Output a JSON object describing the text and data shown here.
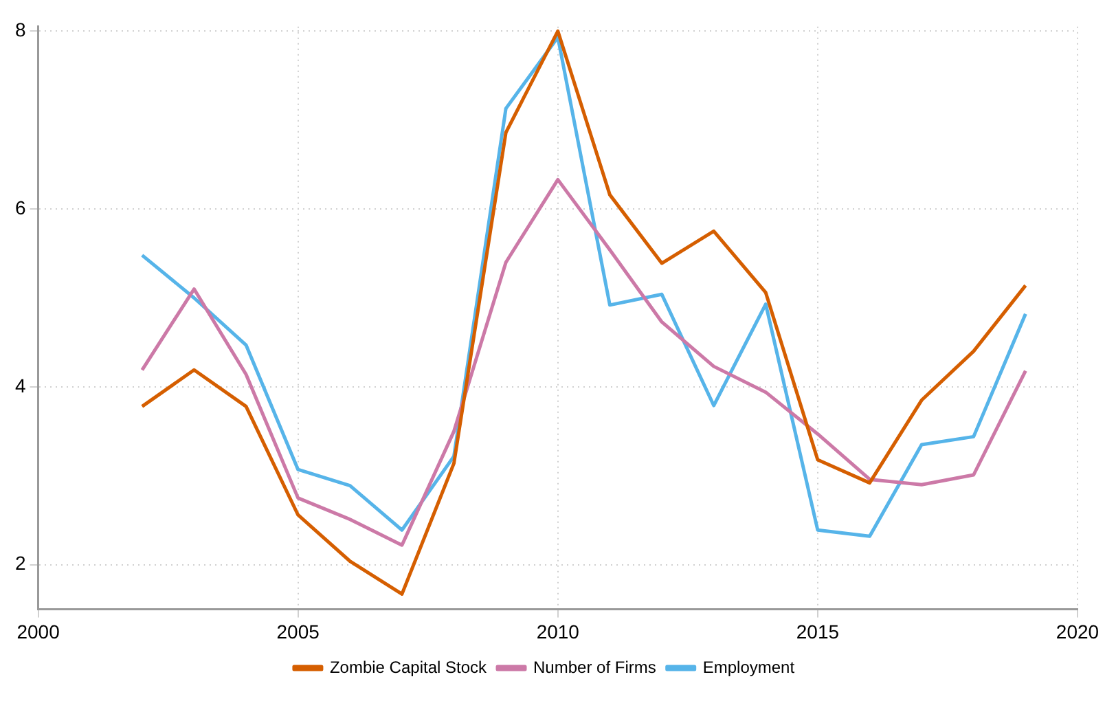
{
  "chart_data": {
    "type": "line",
    "x": [
      2002,
      2003,
      2004,
      2005,
      2006,
      2007,
      2008,
      2009,
      2010,
      2011,
      2012,
      2013,
      2014,
      2015,
      2016,
      2017,
      2018,
      2019
    ],
    "series": [
      {
        "name": "Zombie Capital Stock",
        "color": "#d55e00",
        "values": [
          3.78,
          4.19,
          3.78,
          2.56,
          2.04,
          1.67,
          3.14,
          6.86,
          8.0,
          6.16,
          5.39,
          5.75,
          5.06,
          3.18,
          2.92,
          3.85,
          4.4,
          5.14
        ]
      },
      {
        "name": "Number of Firms",
        "color": "#cc79a7",
        "values": [
          4.19,
          5.1,
          4.14,
          2.75,
          2.51,
          2.22,
          3.5,
          5.4,
          6.33,
          5.54,
          4.73,
          4.23,
          3.94,
          3.47,
          2.96,
          2.9,
          3.01,
          4.18
        ]
      },
      {
        "name": "Employment",
        "color": "#56b4e9",
        "values": [
          5.48,
          5.0,
          4.47,
          3.07,
          2.89,
          2.39,
          3.22,
          7.13,
          7.93,
          4.92,
          5.04,
          3.79,
          4.93,
          2.39,
          2.32,
          3.35,
          3.44,
          4.82
        ]
      }
    ],
    "xlim": [
      2000,
      2020
    ],
    "xticks": [
      2000,
      2005,
      2010,
      2015,
      2020
    ],
    "ylim": [
      1.5,
      8.05
    ],
    "yticks": [
      2,
      4,
      6,
      8
    ],
    "grid": true,
    "legend": "bottom",
    "marker": "none",
    "line_style": "solid"
  }
}
